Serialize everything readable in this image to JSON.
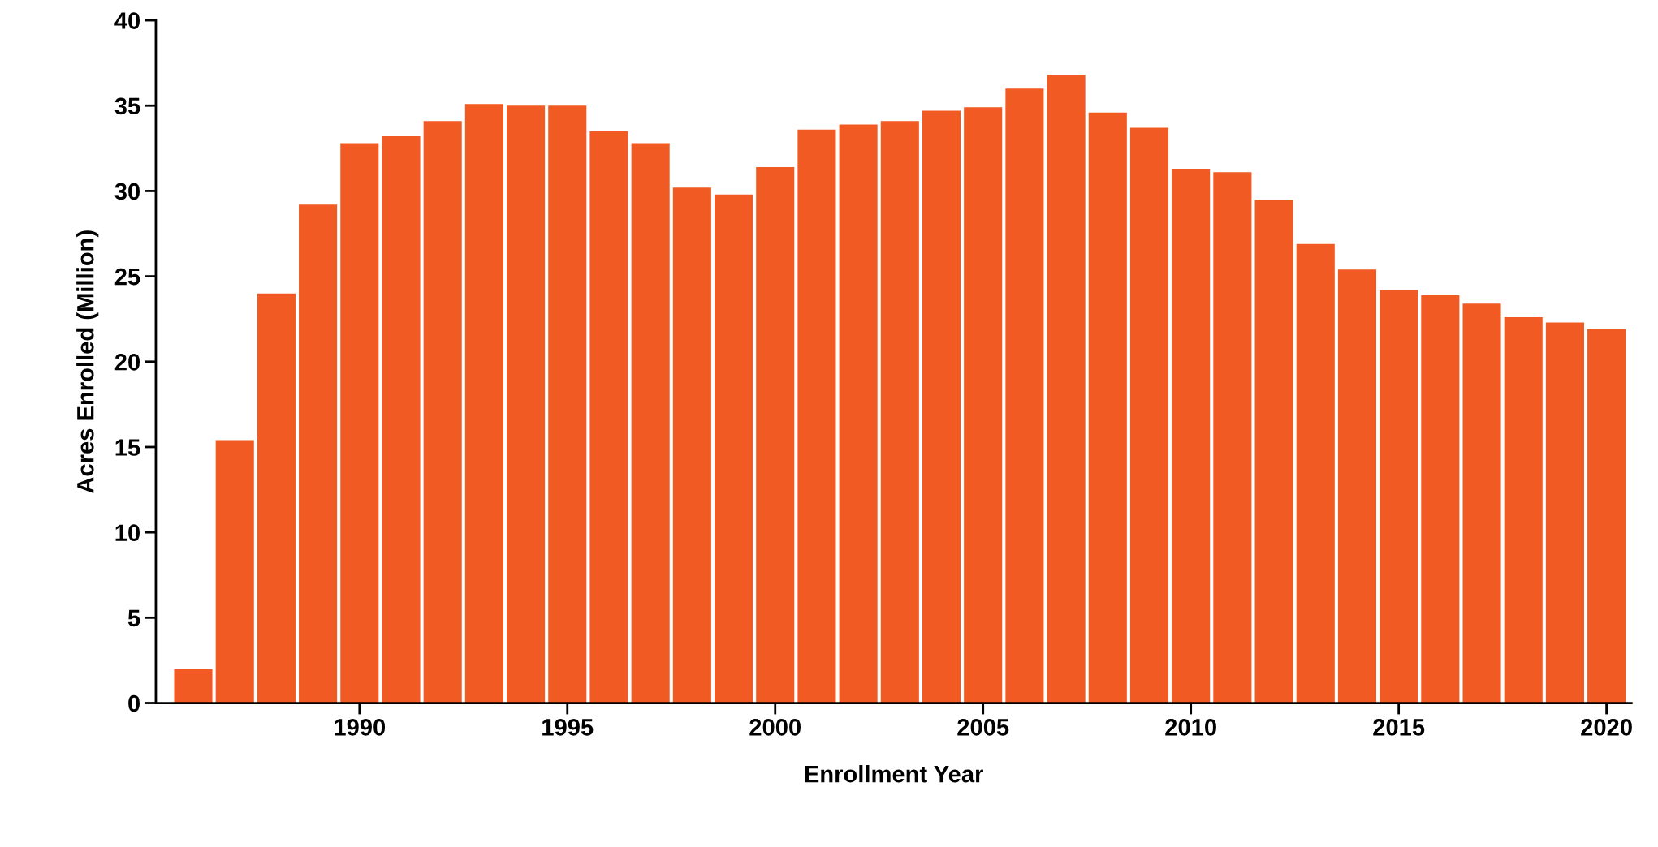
{
  "chart_data": {
    "type": "bar",
    "xlabel": "Enrollment Year",
    "ylabel": "Acres Enrolled (Million)",
    "x": [
      1986,
      1987,
      1988,
      1989,
      1990,
      1991,
      1992,
      1993,
      1994,
      1995,
      1996,
      1997,
      1998,
      1999,
      2000,
      2001,
      2002,
      2003,
      2004,
      2005,
      2006,
      2007,
      2008,
      2009,
      2010,
      2011,
      2012,
      2013,
      2014,
      2015,
      2016,
      2017,
      2018,
      2019,
      2020
    ],
    "values": [
      2.0,
      15.4,
      24.0,
      29.2,
      32.8,
      33.2,
      34.1,
      35.1,
      35.0,
      35.0,
      33.5,
      32.8,
      30.2,
      29.8,
      31.4,
      33.6,
      33.9,
      34.1,
      34.7,
      34.9,
      36.0,
      36.8,
      34.6,
      33.7,
      31.3,
      31.1,
      29.5,
      26.9,
      25.4,
      24.2,
      23.9,
      23.4,
      22.6,
      22.3,
      21.9
    ],
    "color": "#f15a22",
    "xlim": [
      1985.1,
      2020.6
    ],
    "xticks": [
      1990,
      1995,
      2000,
      2005,
      2010,
      2015,
      2020
    ],
    "ylim": [
      0,
      40
    ],
    "yticks": [
      0,
      5,
      10,
      15,
      20,
      25,
      30,
      35,
      40
    ],
    "grid": false,
    "legend": false
  }
}
